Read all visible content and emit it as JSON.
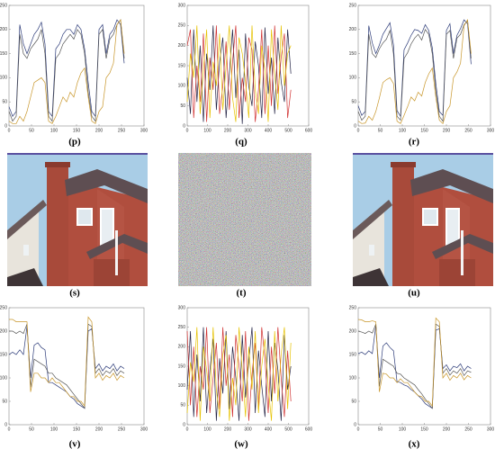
{
  "chart_data": [
    {
      "type": "line",
      "caption": "(p)",
      "xlim": [
        0,
        300
      ],
      "ylim": [
        0,
        250
      ],
      "xticks": [
        0,
        50,
        100,
        150,
        200,
        250,
        300
      ],
      "yticks": [
        0,
        50,
        100,
        150,
        200,
        250
      ],
      "x": [
        0,
        8,
        16,
        24,
        32,
        40,
        48,
        56,
        64,
        72,
        80,
        88,
        96,
        104,
        112,
        120,
        128,
        136,
        144,
        152,
        160,
        168,
        176,
        184,
        192,
        200,
        208,
        216,
        224,
        232,
        240,
        248,
        256
      ],
      "series": [
        {
          "color": "#2b3a78",
          "values": [
            40,
            20,
            30,
            210,
            170,
            150,
            170,
            190,
            200,
            215,
            170,
            30,
            20,
            160,
            170,
            190,
            200,
            200,
            190,
            210,
            200,
            160,
            90,
            30,
            20,
            200,
            210,
            150,
            190,
            200,
            220,
            210,
            130
          ]
        },
        {
          "color": "#555555",
          "values": [
            30,
            10,
            20,
            190,
            150,
            140,
            160,
            170,
            180,
            200,
            150,
            20,
            10,
            140,
            150,
            170,
            180,
            190,
            180,
            200,
            190,
            150,
            70,
            20,
            10,
            190,
            200,
            140,
            180,
            190,
            210,
            220,
            140
          ]
        },
        {
          "color": "#c8962a",
          "values": [
            10,
            5,
            5,
            20,
            10,
            30,
            60,
            90,
            95,
            100,
            90,
            10,
            5,
            20,
            40,
            60,
            50,
            70,
            60,
            90,
            110,
            120,
            60,
            10,
            5,
            30,
            40,
            100,
            110,
            130,
            210,
            220,
            150
          ]
        }
      ]
    },
    {
      "type": "line",
      "caption": "(q)",
      "xlim": [
        0,
        600
      ],
      "ylim": [
        0,
        300
      ],
      "xticks": [
        0,
        100,
        200,
        300,
        400,
        500,
        600
      ],
      "yticks": [
        0,
        50,
        100,
        150,
        200,
        250,
        300
      ],
      "x": [
        0,
        16,
        32,
        48,
        64,
        80,
        96,
        112,
        128,
        144,
        160,
        176,
        192,
        208,
        224,
        240,
        256,
        272,
        288,
        304,
        320,
        336,
        352,
        368,
        384,
        400,
        416,
        432,
        448,
        464,
        480,
        496,
        512
      ],
      "series": [
        {
          "color": "#222244",
          "values": [
            120,
            30,
            240,
            60,
            200,
            10,
            180,
            90,
            250,
            40,
            160,
            220,
            20,
            130,
            240,
            70,
            190,
            5,
            230,
            100,
            50,
            210,
            150,
            20,
            245,
            80,
            170,
            30,
            220,
            110,
            60,
            240,
            130
          ]
        },
        {
          "color": "#d03030",
          "values": [
            200,
            240,
            20,
            150,
            60,
            230,
            10,
            170,
            90,
            250,
            30,
            100,
            210,
            40,
            160,
            250,
            20,
            120,
            60,
            220,
            190,
            10,
            90,
            240,
            30,
            200,
            50,
            250,
            80,
            170,
            230,
            20,
            90
          ]
        },
        {
          "color": "#e6c200",
          "values": [
            60,
            180,
            120,
            250,
            30,
            140,
            240,
            20,
            160,
            100,
            230,
            40,
            150,
            250,
            70,
            10,
            220,
            180,
            110,
            20,
            250,
            90,
            30,
            200,
            140,
            10,
            240,
            130,
            40,
            250,
            100,
            180,
            200
          ]
        }
      ]
    },
    {
      "type": "line",
      "caption": "(r)",
      "xlim": [
        0,
        300
      ],
      "ylim": [
        0,
        250
      ],
      "xticks": [
        0,
        50,
        100,
        150,
        200,
        250,
        300
      ],
      "yticks": [
        0,
        50,
        100,
        150,
        200,
        250
      ],
      "x": [
        0,
        8,
        16,
        24,
        32,
        40,
        48,
        56,
        64,
        72,
        80,
        88,
        96,
        104,
        112,
        120,
        128,
        136,
        144,
        152,
        160,
        168,
        176,
        184,
        192,
        200,
        208,
        216,
        224,
        232,
        240,
        248,
        256
      ],
      "series": [
        {
          "color": "#2b3a78",
          "values": [
            42,
            22,
            30,
            208,
            172,
            150,
            168,
            190,
            202,
            214,
            168,
            32,
            20,
            158,
            172,
            188,
            200,
            198,
            192,
            210,
            198,
            162,
            88,
            30,
            22,
            198,
            212,
            150,
            188,
            202,
            220,
            212,
            128
          ]
        },
        {
          "color": "#555555",
          "values": [
            30,
            12,
            20,
            190,
            150,
            142,
            160,
            172,
            180,
            198,
            150,
            20,
            12,
            140,
            152,
            170,
            182,
            190,
            178,
            200,
            190,
            150,
            72,
            20,
            10,
            190,
            198,
            140,
            182,
            190,
            210,
            218,
            140
          ]
        },
        {
          "color": "#c8962a",
          "values": [
            10,
            5,
            6,
            20,
            12,
            30,
            58,
            90,
            96,
            100,
            88,
            10,
            5,
            22,
            40,
            60,
            52,
            70,
            62,
            90,
            108,
            120,
            60,
            12,
            5,
            30,
            42,
            100,
            112,
            130,
            208,
            220,
            150
          ]
        }
      ]
    },
    {
      "type": "line",
      "caption": "(v)",
      "xlim": [
        0,
        300
      ],
      "ylim": [
        0,
        250
      ],
      "xticks": [
        0,
        50,
        100,
        150,
        200,
        250,
        300
      ],
      "yticks": [
        0,
        50,
        100,
        150,
        200,
        250
      ],
      "x": [
        0,
        8,
        16,
        24,
        32,
        40,
        48,
        56,
        64,
        72,
        80,
        88,
        96,
        104,
        112,
        120,
        128,
        136,
        144,
        152,
        160,
        168,
        176,
        184,
        192,
        200,
        208,
        216,
        224,
        232,
        240,
        248,
        256
      ],
      "series": [
        {
          "color": "#2b3a78",
          "values": [
            150,
            155,
            150,
            160,
            150,
            210,
            100,
            170,
            175,
            165,
            160,
            90,
            90,
            85,
            80,
            75,
            70,
            60,
            55,
            45,
            40,
            35,
            200,
            205,
            120,
            130,
            115,
            125,
            120,
            130,
            115,
            125,
            120
          ]
        },
        {
          "color": "#555555",
          "values": [
            200,
            200,
            195,
            200,
            195,
            215,
            80,
            140,
            135,
            130,
            125,
            110,
            110,
            100,
            95,
            90,
            85,
            75,
            65,
            55,
            45,
            35,
            215,
            210,
            110,
            120,
            105,
            115,
            110,
            120,
            105,
            115,
            110
          ]
        },
        {
          "color": "#c8962a",
          "values": [
            225,
            225,
            220,
            220,
            220,
            220,
            70,
            110,
            110,
            100,
            100,
            90,
            100,
            90,
            90,
            80,
            70,
            60,
            60,
            50,
            50,
            40,
            230,
            220,
            100,
            110,
            95,
            105,
            100,
            110,
            95,
            105,
            100
          ]
        }
      ]
    },
    {
      "type": "line",
      "caption": "(w)",
      "xlim": [
        0,
        600
      ],
      "ylim": [
        0,
        300
      ],
      "xticks": [
        0,
        100,
        200,
        300,
        400,
        500,
        600
      ],
      "yticks": [
        0,
        50,
        100,
        150,
        200,
        250,
        300
      ],
      "x": [
        0,
        16,
        32,
        48,
        64,
        80,
        96,
        112,
        128,
        144,
        160,
        176,
        192,
        208,
        224,
        240,
        256,
        272,
        288,
        304,
        320,
        336,
        352,
        368,
        384,
        400,
        416,
        432,
        448,
        464,
        480,
        496,
        512
      ],
      "series": [
        {
          "color": "#222244",
          "values": [
            90,
            240,
            20,
            180,
            60,
            250,
            30,
            140,
            220,
            10,
            170,
            80,
            240,
            40,
            200,
            120,
            10,
            230,
            70,
            160,
            250,
            30,
            190,
            100,
            20,
            240,
            60,
            210,
            140,
            10,
            230,
            90,
            150
          ]
        },
        {
          "color": "#d03030",
          "values": [
            240,
            50,
            200,
            20,
            150,
            90,
            250,
            30,
            120,
            210,
            40,
            250,
            100,
            180,
            20,
            230,
            150,
            60,
            240,
            10,
            130,
            210,
            40,
            250,
            170,
            30,
            200,
            80,
            250,
            120,
            20,
            190,
            60
          ]
        },
        {
          "color": "#e6c200",
          "values": [
            30,
            160,
            110,
            250,
            10,
            200,
            140,
            60,
            250,
            90,
            20,
            180,
            230,
            10,
            120,
            50,
            250,
            140,
            20,
            200,
            90,
            240,
            30,
            150,
            220,
            100,
            10,
            240,
            60,
            180,
            250,
            40,
            210
          ]
        }
      ]
    },
    {
      "type": "line",
      "caption": "(x)",
      "xlim": [
        0,
        300
      ],
      "ylim": [
        0,
        250
      ],
      "xticks": [
        0,
        50,
        100,
        150,
        200,
        250,
        300
      ],
      "yticks": [
        0,
        50,
        100,
        150,
        200,
        250
      ],
      "x": [
        0,
        8,
        16,
        24,
        32,
        40,
        48,
        56,
        64,
        72,
        80,
        88,
        96,
        104,
        112,
        120,
        128,
        136,
        144,
        152,
        160,
        168,
        176,
        184,
        192,
        200,
        208,
        216,
        224,
        232,
        240,
        248,
        256
      ],
      "series": [
        {
          "color": "#2b3a78",
          "values": [
            152,
            155,
            150,
            158,
            152,
            212,
            100,
            168,
            175,
            165,
            158,
            92,
            90,
            85,
            82,
            75,
            70,
            62,
            55,
            45,
            40,
            35,
            202,
            205,
            120,
            128,
            115,
            125,
            122,
            130,
            115,
            125,
            120
          ]
        },
        {
          "color": "#555555",
          "values": [
            200,
            198,
            195,
            200,
            196,
            215,
            82,
            140,
            135,
            130,
            125,
            110,
            108,
            100,
            95,
            90,
            85,
            75,
            66,
            55,
            45,
            35,
            215,
            210,
            110,
            120,
            106,
            115,
            110,
            120,
            105,
            115,
            112
          ]
        },
        {
          "color": "#c8962a",
          "values": [
            225,
            224,
            220,
            220,
            222,
            220,
            70,
            110,
            108,
            100,
            100,
            90,
            98,
            90,
            90,
            80,
            70,
            62,
            60,
            50,
            50,
            40,
            228,
            220,
            100,
            110,
            95,
            105,
            100,
            110,
            96,
            105,
            100
          ]
        }
      ]
    }
  ],
  "figures": [
    {
      "caption": "(s)"
    },
    {
      "caption": "(t)"
    },
    {
      "caption": "(u)"
    }
  ]
}
